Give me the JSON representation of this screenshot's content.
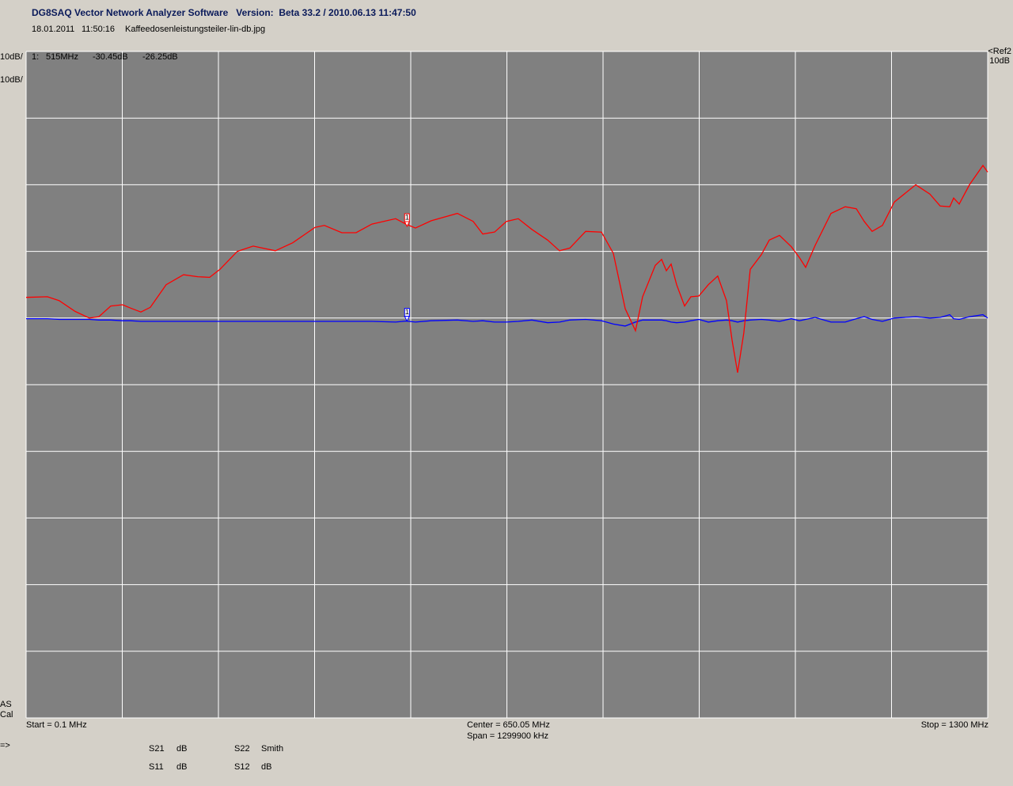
{
  "header": {
    "title": "DG8SAQ Vector Network Analyzer Software   Version:  Beta 33.2 / 2010.06.13 11:47:50",
    "date": "18.01.2011",
    "time": "11:50:16",
    "file": "Kaffeedosenleistungsteiler-lin-db.jpg"
  },
  "chart_data": {
    "type": "line",
    "background": "#808080",
    "grid": true,
    "grid_color": "#ffffff",
    "xlim": [
      0.1,
      1300
    ],
    "ylim": [
      -90,
      10
    ],
    "y2lim": [
      -100,
      0
    ],
    "x": [
      0.1,
      28.9,
      44.9,
      66.3,
      85.6,
      98.4,
      114.5,
      130.5,
      141.2,
      155.2,
      168.0,
      189.4,
      212.9,
      232.2,
      248.2,
      262.1,
      285.6,
      307.0,
      337.0,
      360.5,
      390.5,
      403.3,
      426.9,
      446.1,
      467.5,
      499.6,
      513.5,
      526.4,
      547.8,
      583.1,
      604.5,
      617.4,
      633.4,
      649.5,
      665.5,
      683.7,
      705.1,
      721.2,
      735.1,
      756.5,
      777.9,
      793.9,
      810.0,
      823.9,
      833.5,
      850.7,
      859.2,
      865.6,
      872.1,
      879.5,
      890.2,
      898.8,
      909.5,
      922.3,
      935.1,
      946.9,
      954.4,
      961.9,
      970.4,
      979.0,
      994.0,
      1004.7,
      1018.6,
      1034.6,
      1045.4,
      1053.9,
      1066.8,
      1088.2,
      1107.4,
      1122.4,
      1133.1,
      1143.8,
      1157.7,
      1173.8,
      1202.7,
      1221.9,
      1235.8,
      1248.7,
      1254.0,
      1261.5,
      1275.4,
      1293.6,
      1300
    ],
    "series": [
      {
        "name": "S21",
        "unit": "dB",
        "color": "#0000ff",
        "scale_label": "10dB/",
        "values": [
          -30.1,
          -30.1,
          -30.2,
          -30.2,
          -30.2,
          -30.3,
          -30.3,
          -30.4,
          -30.4,
          -30.5,
          -30.5,
          -30.5,
          -30.5,
          -30.5,
          -30.5,
          -30.5,
          -30.5,
          -30.5,
          -30.5,
          -30.5,
          -30.5,
          -30.5,
          -30.5,
          -30.5,
          -30.5,
          -30.6,
          -30.45,
          -30.6,
          -30.4,
          -30.3,
          -30.5,
          -30.4,
          -30.6,
          -30.6,
          -30.5,
          -30.3,
          -30.7,
          -30.6,
          -30.3,
          -30.2,
          -30.4,
          -30.9,
          -31.2,
          -30.6,
          -30.3,
          -30.3,
          -30.3,
          -30.4,
          -30.6,
          -30.7,
          -30.6,
          -30.4,
          -30.2,
          -30.6,
          -30.4,
          -30.3,
          -30.4,
          -30.6,
          -30.4,
          -30.3,
          -30.2,
          -30.3,
          -30.5,
          -30.1,
          -30.4,
          -30.2,
          -29.9,
          -30.6,
          -30.6,
          -30.1,
          -29.8,
          -30.2,
          -30.5,
          -30.0,
          -29.8,
          -30.0,
          -29.9,
          -29.5,
          -30.1,
          -30.2,
          -29.8,
          -29.5,
          -30.0
        ]
      },
      {
        "name": "S11",
        "unit": "dB",
        "color": "#ff0000",
        "scale_label": "10dB/",
        "axis": "y2",
        "values": [
          -36.9,
          -36.8,
          -37.4,
          -39.0,
          -40.0,
          -39.8,
          -38.2,
          -38.0,
          -38.5,
          -39.1,
          -38.4,
          -35.0,
          -33.5,
          -33.8,
          -33.9,
          -32.7,
          -30.0,
          -29.2,
          -29.9,
          -28.7,
          -26.4,
          -26.1,
          -27.2,
          -27.2,
          -25.9,
          -25.1,
          -25.9,
          -26.5,
          -25.4,
          -24.3,
          -25.5,
          -27.4,
          -27.1,
          -25.5,
          -25.1,
          -26.7,
          -28.3,
          -29.9,
          -29.5,
          -27.0,
          -27.1,
          -30.3,
          -38.6,
          -41.9,
          -36.8,
          -32.1,
          -31.2,
          -32.9,
          -31.9,
          -35.0,
          -38.2,
          -36.8,
          -36.7,
          -35.0,
          -33.7,
          -37.4,
          -43.3,
          -48.2,
          -42.2,
          -32.7,
          -30.5,
          -28.3,
          -27.6,
          -29.3,
          -30.9,
          -32.4,
          -29.1,
          -24.3,
          -23.3,
          -23.6,
          -25.5,
          -27.0,
          -26.1,
          -22.6,
          -20.0,
          -21.4,
          -23.2,
          -23.3,
          -22.0,
          -22.9,
          -20.0,
          -17.1,
          -18.1
        ]
      }
    ],
    "marker": {
      "label": "1:",
      "flag": "1",
      "x": {
        "value": 515,
        "label": "515MHz"
      },
      "values": [
        -30.45,
        -26.25
      ],
      "value_labels": [
        "-30.45dB",
        "-26.25dB"
      ]
    },
    "ref_labels": [
      "<Ref2",
      "10dB"
    ],
    "start_label": "Start = 0.1 MHz",
    "center_label": "Center = 650.05 MHz",
    "span_label": "Span = 1299900 kHz",
    "stop_label": "Stop = 1300 MHz"
  },
  "footer": {
    "status": [
      "AS",
      "Cal"
    ],
    "arrow": "=>",
    "other_traces": [
      {
        "name": "S22",
        "unit": "Smith",
        "color": "#9be89b"
      },
      {
        "name": "S12",
        "unit": "dB",
        "color": "#ff00ff"
      }
    ]
  }
}
